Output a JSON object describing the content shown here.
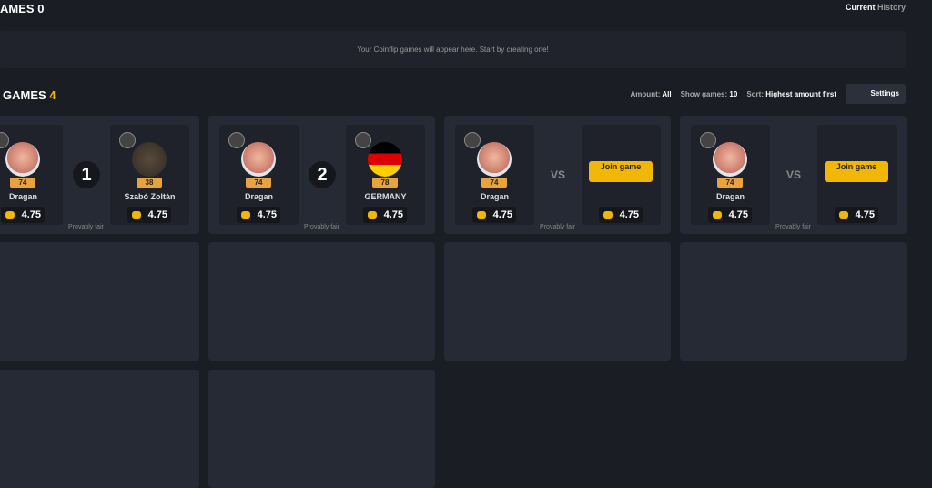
{
  "header": {
    "title": "AMES",
    "count": "0",
    "tabs": [
      "Current",
      "History"
    ]
  },
  "empty_message": "Your Coinflip games will appear here. Start by creating one!",
  "games_header": {
    "title": "GAMES",
    "count": "4",
    "filters": [
      {
        "label": "Amount:",
        "value": "All"
      },
      {
        "label": "Show games:",
        "value": "10"
      },
      {
        "label": "Sort:",
        "value": "Highest amount first"
      }
    ],
    "settings": "Settings"
  },
  "games": [
    {
      "left": {
        "name": "Dragan",
        "level": "74",
        "amount": "4.75"
      },
      "center": "1",
      "right": {
        "name": "Szabó Zoltàn",
        "level": "38",
        "amount": "4.75"
      },
      "footer": "Provably fair"
    },
    {
      "left": {
        "name": "Dragan",
        "level": "74",
        "amount": "4.75"
      },
      "center": "2",
      "right": {
        "name": "GERMANY",
        "level": "78",
        "amount": "4.75"
      },
      "footer": "Provably fair"
    },
    {
      "left": {
        "name": "Dragan",
        "level": "74",
        "amount": "4.75"
      },
      "center": "VS",
      "right": {
        "join": "Join game",
        "amount": "4.75"
      },
      "footer": "Provably fair"
    },
    {
      "left": {
        "name": "Dragan",
        "level": "74",
        "amount": "4.75"
      },
      "center": "VS",
      "right": {
        "join": "Join game",
        "amount": "4.75"
      },
      "footer": "Provably fair"
    }
  ]
}
